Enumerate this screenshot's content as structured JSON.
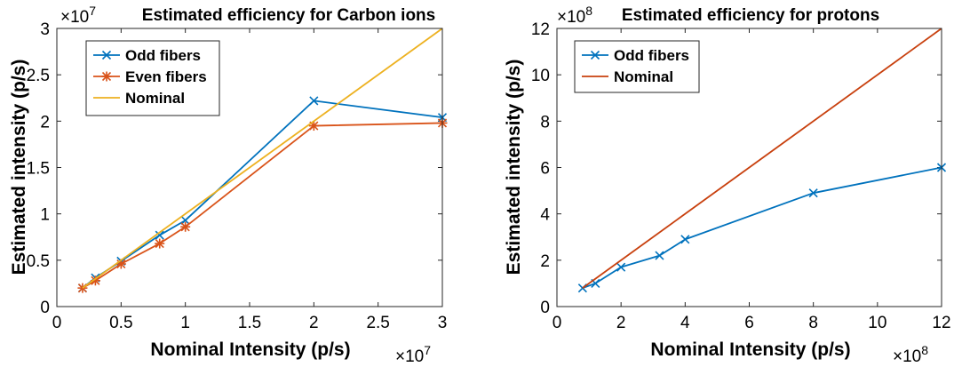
{
  "chart_data": [
    {
      "type": "line",
      "title": "Estimated efficiency for Carbon ions",
      "xlabel": "Nominal Intensity (p/s)",
      "ylabel": "Estimated intensity (p/s)",
      "x_multiplier": "×10",
      "x_exponent": "7",
      "y_multiplier": "×10",
      "y_exponent": "7",
      "xlim": [
        0,
        3
      ],
      "ylim": [
        0,
        3
      ],
      "xticks": [
        0,
        0.5,
        1,
        1.5,
        2,
        2.5,
        3
      ],
      "xtick_labels": [
        "0",
        "0.5",
        "1",
        "1.5",
        "2",
        "2.5",
        "3"
      ],
      "yticks": [
        0,
        0.5,
        1,
        1.5,
        2,
        2.5,
        3
      ],
      "ytick_labels": [
        "0",
        "0.5",
        "1",
        "1.5",
        "2",
        "2.5",
        "3"
      ],
      "legend_position": "top-left",
      "series": [
        {
          "name": "Odd fibers",
          "color": "#0072BD",
          "marker": "x",
          "x": [
            0.2,
            0.3,
            0.5,
            0.8,
            1.0,
            2.0,
            3.0
          ],
          "y": [
            0.2,
            0.31,
            0.49,
            0.77,
            0.93,
            2.22,
            2.04
          ]
        },
        {
          "name": "Even fibers",
          "color": "#D95319",
          "marker": "star",
          "x": [
            0.2,
            0.3,
            0.5,
            0.8,
            1.0,
            2.0,
            3.0
          ],
          "y": [
            0.2,
            0.28,
            0.46,
            0.68,
            0.86,
            1.95,
            1.98
          ]
        },
        {
          "name": "Nominal",
          "color": "#EDB120",
          "marker": "none",
          "x": [
            0.2,
            3.0
          ],
          "y": [
            0.2,
            3.0
          ]
        }
      ]
    },
    {
      "type": "line",
      "title": "Estimated efficiency for protons",
      "xlabel": "Nominal Intensity (p/s)",
      "ylabel": "Estimated intensity (p/s)",
      "x_multiplier": "×10",
      "x_exponent": "8",
      "y_multiplier": "×10",
      "y_exponent": "8",
      "xlim": [
        0,
        12
      ],
      "ylim": [
        0,
        12
      ],
      "xticks": [
        0,
        2,
        4,
        6,
        8,
        10,
        12
      ],
      "xtick_labels": [
        "0",
        "2",
        "4",
        "6",
        "8",
        "10",
        "12"
      ],
      "yticks": [
        0,
        2,
        4,
        6,
        8,
        10,
        12
      ],
      "ytick_labels": [
        "0",
        "2",
        "4",
        "6",
        "8",
        "10",
        "12"
      ],
      "legend_position": "top-left",
      "series": [
        {
          "name": "Odd fibers",
          "color": "#0072BD",
          "marker": "x",
          "x": [
            0.8,
            1.2,
            2.0,
            3.2,
            4.0,
            8.0,
            12.0
          ],
          "y": [
            0.8,
            1.0,
            1.7,
            2.2,
            2.9,
            4.9,
            6.0
          ]
        },
        {
          "name": "Nominal",
          "color": "#C8400E",
          "marker": "none",
          "x": [
            0.8,
            12.0
          ],
          "y": [
            0.8,
            12.0
          ]
        }
      ]
    }
  ]
}
